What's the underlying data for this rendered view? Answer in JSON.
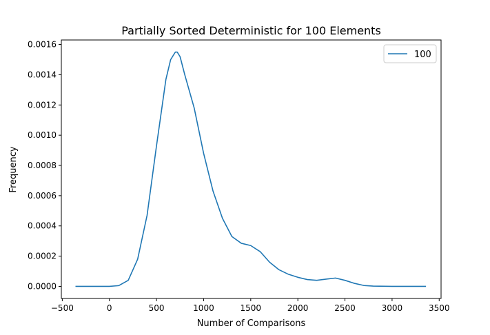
{
  "chart_data": {
    "type": "line",
    "title": "Partially Sorted Deterministic for 100 Elements",
    "xlabel": "Number of Comparisons",
    "ylabel": "Frequency",
    "xlim": [
      -510,
      3520
    ],
    "ylim": [
      -8e-05,
      0.00163
    ],
    "xticks": [
      -500,
      0,
      500,
      1000,
      1500,
      2000,
      2500,
      3000,
      3500
    ],
    "xtick_labels": [
      "−500",
      "0",
      "500",
      "1000",
      "1500",
      "2000",
      "2500",
      "3000",
      "3500"
    ],
    "yticks": [
      0.0,
      0.0002,
      0.0004,
      0.0006,
      0.0008,
      0.001,
      0.0012,
      0.0014,
      0.0016
    ],
    "ytick_labels": [
      "0.0000",
      "0.0002",
      "0.0004",
      "0.0006",
      "0.0008",
      "0.0010",
      "0.0012",
      "0.0014",
      "0.0016"
    ],
    "grid": false,
    "legend": {
      "position": "top-right",
      "entries": [
        "100"
      ]
    },
    "series": [
      {
        "name": "100",
        "color": "#1f77b4",
        "x": [
          -360,
          0,
          100,
          200,
          300,
          400,
          500,
          600,
          650,
          700,
          720,
          750,
          800,
          900,
          1000,
          1100,
          1200,
          1300,
          1400,
          1500,
          1600,
          1700,
          1800,
          1900,
          2000,
          2100,
          2200,
          2300,
          2400,
          2500,
          2600,
          2700,
          2800,
          3000,
          3360
        ],
        "y": [
          0.0,
          0.0,
          5e-06,
          4e-05,
          0.00018,
          0.00047,
          0.00093,
          0.00137,
          0.0015,
          0.00155,
          0.00155,
          0.00152,
          0.0014,
          0.00118,
          0.00088,
          0.00063,
          0.00045,
          0.00033,
          0.000285,
          0.00027,
          0.00023,
          0.00016,
          0.00011,
          8e-05,
          6e-05,
          4.5e-05,
          4e-05,
          4.8e-05,
          5.5e-05,
          4e-05,
          2e-05,
          6e-06,
          2e-06,
          0.0,
          0.0
        ]
      }
    ]
  }
}
